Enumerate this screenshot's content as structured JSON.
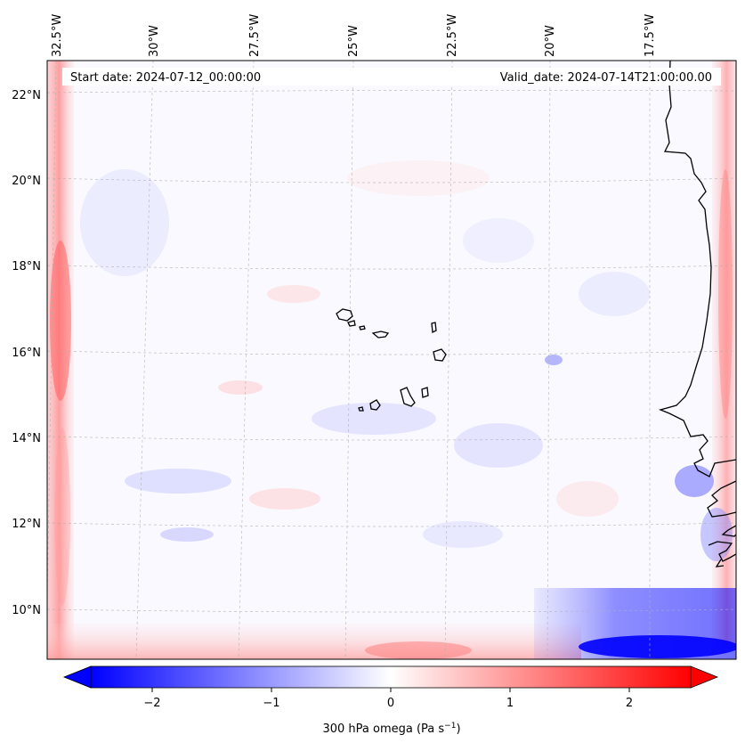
{
  "map": {
    "start_date_label": "Start date: 2024-07-12_00:00:00",
    "valid_date_label": "Valid_date: 2024-07-14T21:00:00.00",
    "lon_labels": [
      "32.5°W",
      "30°W",
      "27.5°W",
      "25°W",
      "22.5°W",
      "20°W",
      "17.5°W"
    ],
    "lat_labels": [
      "22°N",
      "20°N",
      "18°N",
      "16°N",
      "14°N",
      "12°N",
      "10°N"
    ],
    "field_colors": {
      "negative": "#0000ff",
      "positive": "#ff0000",
      "neutral": "#ffffff"
    }
  },
  "colorbar": {
    "ticks": [
      "−2",
      "−1",
      "0",
      "1",
      "2"
    ],
    "label_main": "300 hPa omega (Pa s",
    "label_exp": "−1",
    "label_end": ")",
    "range": [
      -2.6,
      2.6
    ]
  }
}
